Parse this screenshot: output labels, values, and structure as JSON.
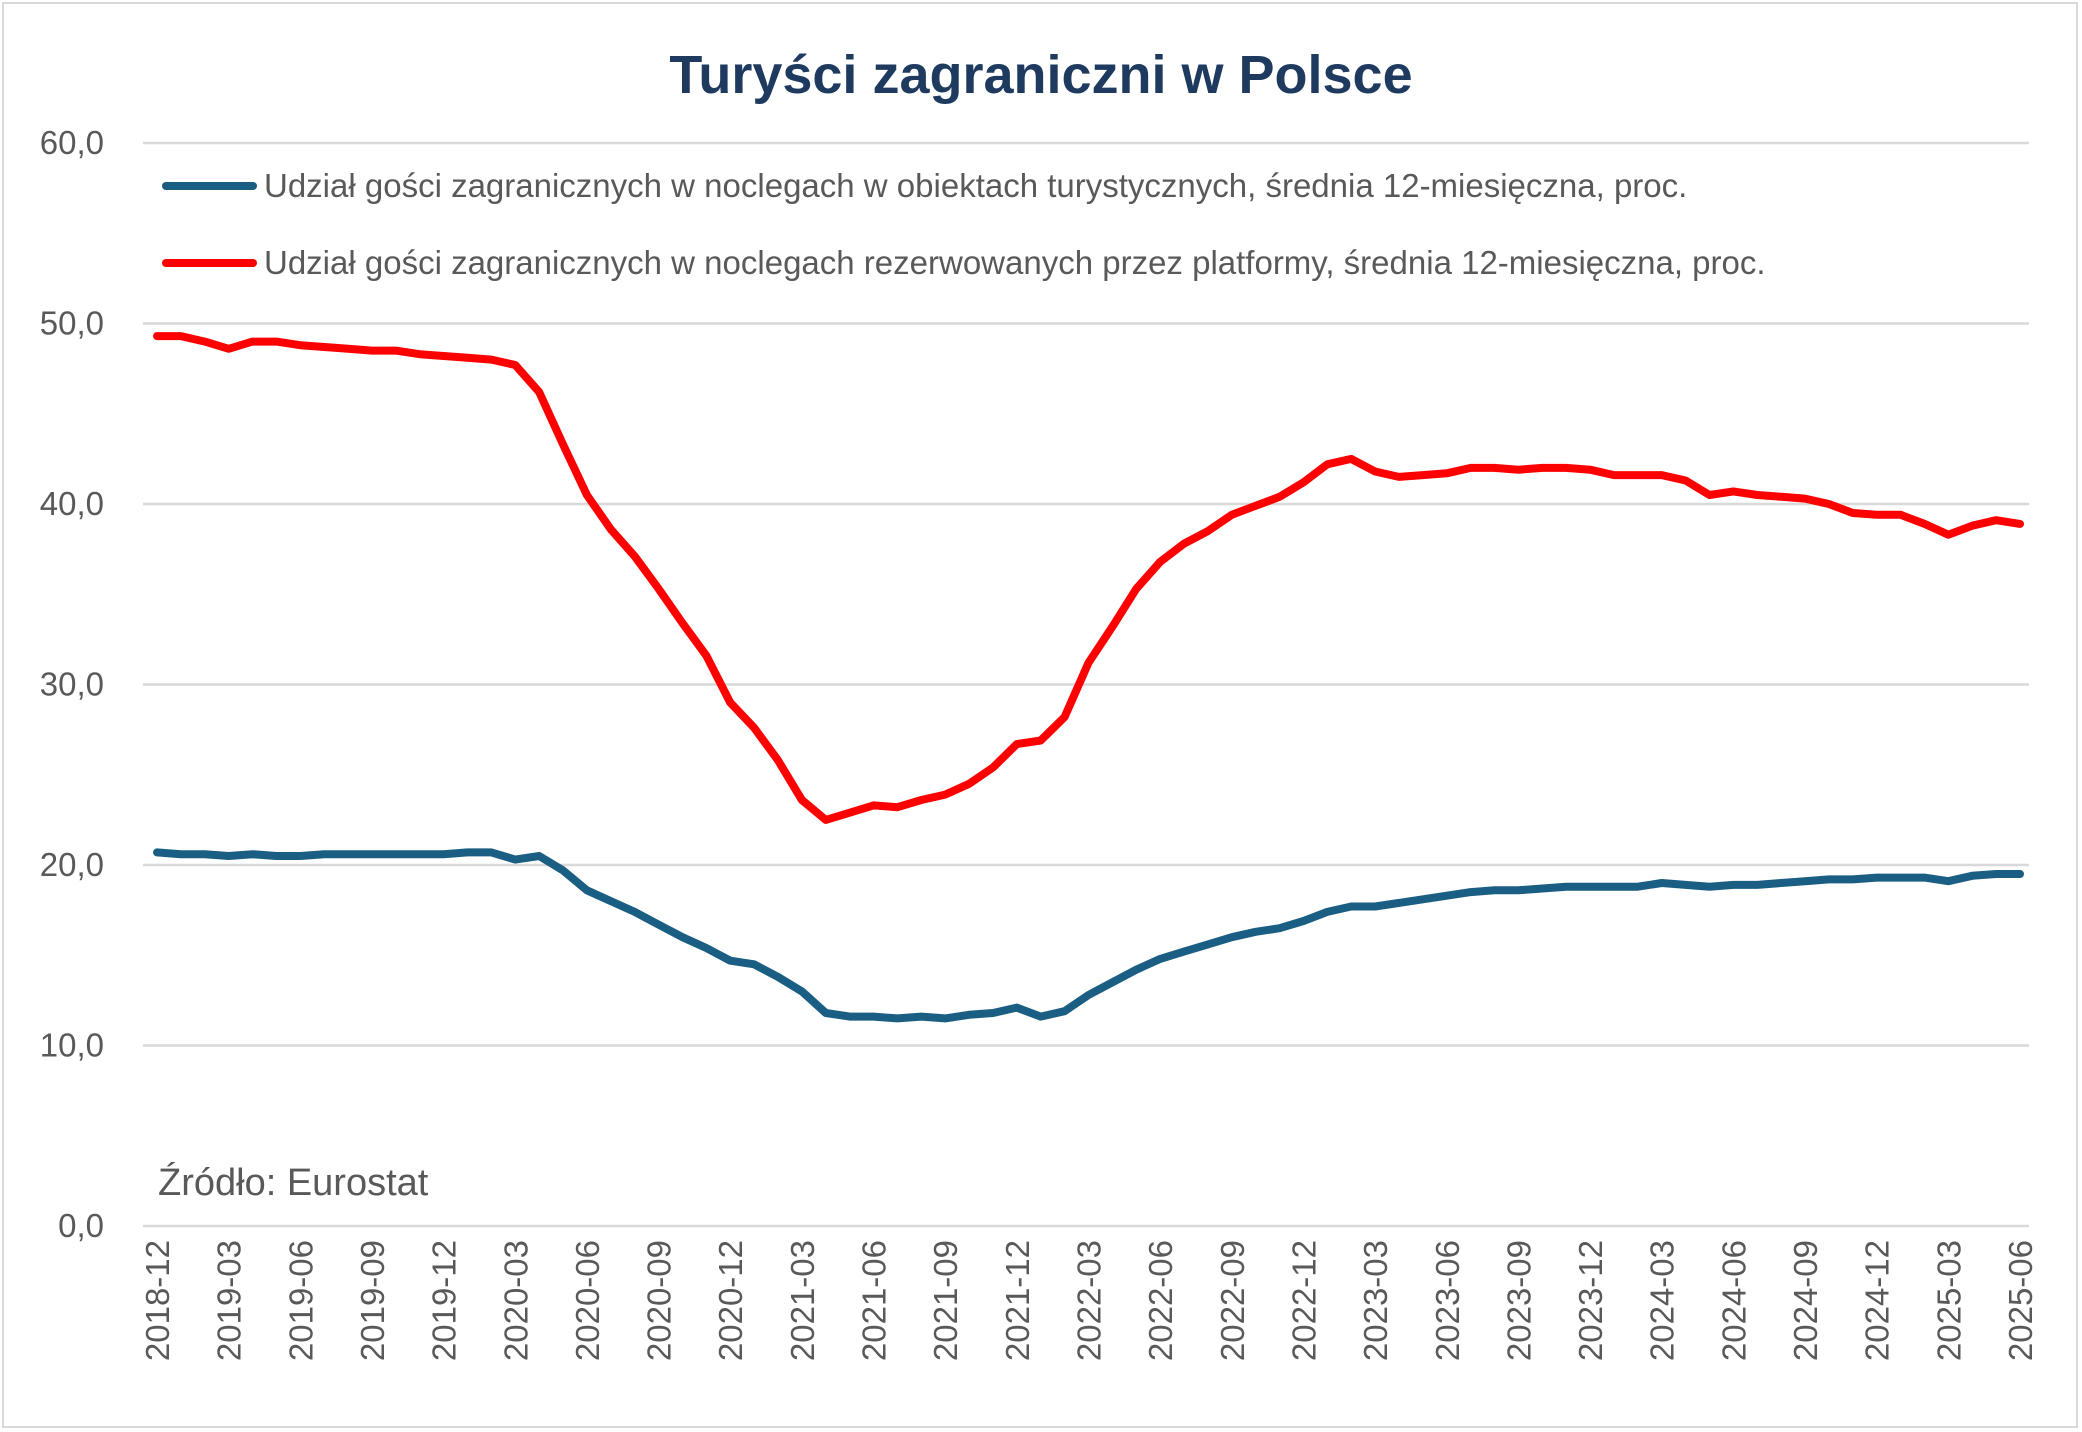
{
  "chart_data": {
    "type": "line",
    "title": "Turyści zagraniczni w Polsce",
    "annotation": "Źródło: Eurostat",
    "xlabel": "",
    "ylabel": "",
    "ylim": [
      0,
      60
    ],
    "yticks": [
      "0,0",
      "10,0",
      "20,0",
      "30,0",
      "40,0",
      "50,0",
      "60,0"
    ],
    "grid": true,
    "legend_position": "top-left",
    "x_start": "2018-12",
    "x_end": "2025-06",
    "x_tick_every_months": 3,
    "series": [
      {
        "name": "Udział gości zagranicznych w noclegach w obiektach turystycznych, średnia 12-miesięczna, proc.",
        "color": "#1a5e83",
        "values": [
          20.7,
          20.6,
          20.6,
          20.5,
          20.6,
          20.5,
          20.5,
          20.6,
          20.6,
          20.6,
          20.6,
          20.6,
          20.6,
          20.7,
          20.7,
          20.3,
          20.5,
          19.7,
          18.6,
          18.0,
          17.4,
          16.7,
          16.0,
          15.4,
          14.7,
          14.5,
          13.8,
          13.0,
          11.8,
          11.6,
          11.6,
          11.5,
          11.6,
          11.5,
          11.7,
          11.8,
          12.1,
          11.6,
          11.9,
          12.8,
          13.5,
          14.2,
          14.8,
          15.2,
          15.6,
          16.0,
          16.3,
          16.5,
          16.9,
          17.4,
          17.7,
          17.7,
          17.9,
          18.1,
          18.3,
          18.5,
          18.6,
          18.6,
          18.7,
          18.8,
          18.8,
          18.8,
          18.8,
          19.0,
          18.9,
          18.8,
          18.9,
          18.9,
          19.0,
          19.1,
          19.2,
          19.2,
          19.3,
          19.3,
          19.3,
          19.1,
          19.4,
          19.5,
          19.5
        ]
      },
      {
        "name": "Udział gości zagranicznych w noclegach rezerwowanych przez platformy, średnia 12-miesięczna, proc.",
        "color": "#ff0000",
        "values": [
          49.3,
          49.3,
          49.0,
          48.6,
          49.0,
          49.0,
          48.8,
          48.7,
          48.6,
          48.5,
          48.5,
          48.3,
          48.2,
          48.1,
          48.0,
          47.7,
          46.2,
          43.3,
          40.5,
          38.6,
          37.1,
          35.3,
          33.4,
          31.6,
          29.0,
          27.6,
          25.8,
          23.6,
          22.5,
          22.9,
          23.3,
          23.2,
          23.6,
          23.9,
          24.5,
          25.4,
          26.7,
          26.9,
          28.2,
          31.2,
          33.2,
          35.3,
          36.8,
          37.8,
          38.5,
          39.4,
          39.9,
          40.4,
          41.2,
          42.2,
          42.5,
          41.8,
          41.5,
          41.6,
          41.7,
          42.0,
          42.0,
          41.9,
          42.0,
          42.0,
          41.9,
          41.6,
          41.6,
          41.6,
          41.3,
          40.5,
          40.7,
          40.5,
          40.4,
          40.3,
          40.0,
          39.5,
          39.4,
          39.4,
          38.9,
          38.3,
          38.8,
          39.1,
          38.9
        ]
      }
    ]
  }
}
